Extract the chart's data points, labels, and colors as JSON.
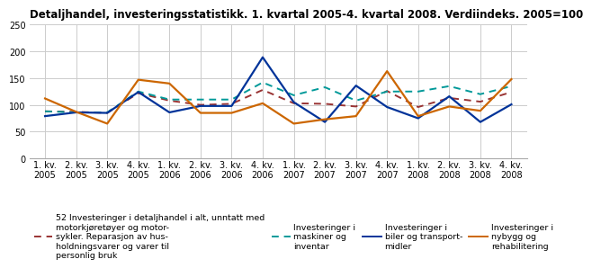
{
  "title": "Detaljhandel, investeringsstatistikk. 1. kvartal 2005-4. kvartal 2008. Verdiindeks. 2005=100",
  "xlabels": [
    "1. kv.\n2005",
    "2. kv.\n2005",
    "3. kv.\n2005",
    "4. kv.\n2005",
    "1. kv.\n2006",
    "2. kv.\n2006",
    "3. kv.\n2006",
    "4. kv.\n2006",
    "1. kv.\n2007",
    "2. kv.\n2007",
    "3. kv.\n2007",
    "4. kv.\n2007",
    "1. kv.\n2008",
    "2. kv.\n2008",
    "3. kv.\n2008",
    "4. kv.\n2008"
  ],
  "series": {
    "red_dashed": {
      "color": "#993333",
      "linestyle": "dashed",
      "values": [
        88,
        87,
        85,
        122,
        108,
        100,
        102,
        128,
        103,
        102,
        97,
        126,
        96,
        113,
        106,
        124
      ]
    },
    "teal_dashed": {
      "color": "#009999",
      "linestyle": "dashed",
      "values": [
        88,
        86,
        86,
        125,
        110,
        110,
        110,
        142,
        118,
        133,
        108,
        125,
        125,
        135,
        120,
        135
      ]
    },
    "blue_solid": {
      "color": "#003399",
      "linestyle": "solid",
      "values": [
        79,
        86,
        85,
        124,
        86,
        98,
        98,
        189,
        105,
        68,
        136,
        96,
        75,
        116,
        68,
        101
      ]
    },
    "orange_solid": {
      "color": "#cc6600",
      "linestyle": "solid",
      "values": [
        112,
        87,
        65,
        147,
        140,
        85,
        85,
        103,
        65,
        73,
        79,
        163,
        79,
        97,
        89,
        148
      ]
    }
  },
  "ylim": [
    0,
    250
  ],
  "yticks": [
    0,
    50,
    100,
    150,
    200,
    250
  ],
  "background_color": "#ffffff",
  "title_fontsize": 8.5,
  "tick_fontsize": 7,
  "legend_fontsize": 6.8
}
